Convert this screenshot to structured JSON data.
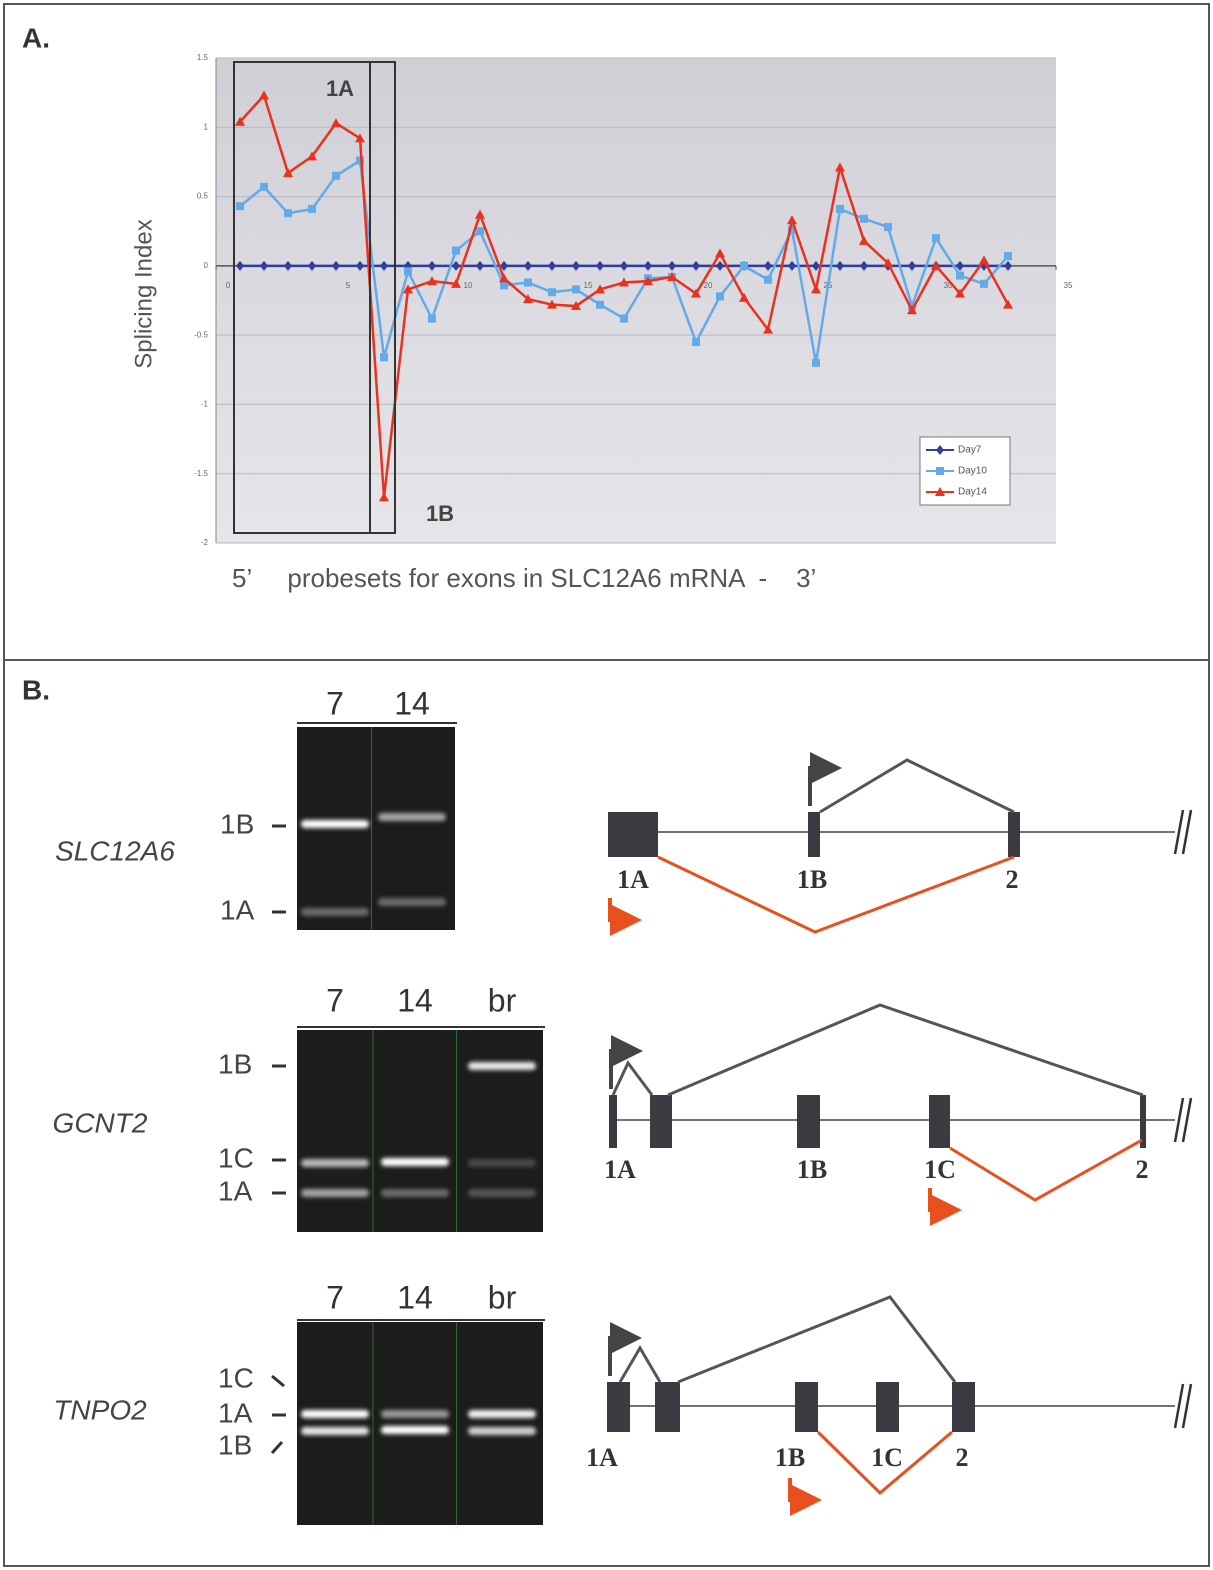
{
  "panel_a_label": "A.",
  "chart_data": {
    "type": "line",
    "ylabel": "Splicing Index",
    "xlabel": "5’     probesets for exons in SLC12A6 mRNA  -    3’",
    "annotations": [
      "1A",
      "1B"
    ],
    "x": [
      1,
      2,
      3,
      4,
      5,
      6,
      7,
      8,
      9,
      10,
      11,
      12,
      13,
      14,
      15,
      16,
      17,
      18,
      19,
      20,
      21,
      22,
      23,
      24,
      25,
      26,
      27,
      28,
      29,
      30,
      31,
      32,
      33
    ],
    "series": [
      {
        "name": "Day7",
        "color": "#2e3f9e",
        "marker": "diamond",
        "values": [
          0,
          0,
          0,
          0,
          0,
          0,
          0,
          0,
          0,
          0,
          0,
          0,
          0,
          0,
          0,
          0,
          0,
          0,
          0,
          0,
          0,
          0,
          0,
          0,
          0,
          0,
          0,
          0,
          0,
          0,
          0,
          0,
          0
        ]
      },
      {
        "name": "Day10",
        "color": "#62aaea",
        "marker": "square",
        "values": [
          0.43,
          0.57,
          0.38,
          0.41,
          0.65,
          0.76,
          -0.66,
          -0.04,
          -0.38,
          0.11,
          0.25,
          -0.14,
          -0.12,
          -0.19,
          -0.17,
          -0.28,
          -0.38,
          -0.09,
          -0.08,
          -0.55,
          -0.22,
          0,
          -0.1,
          0.26,
          -0.7,
          0.41,
          0.34,
          0.28,
          -0.29,
          0.2,
          -0.07,
          -0.13,
          0.07
        ]
      },
      {
        "name": "Day14",
        "color": "#e8321e",
        "marker": "triangle",
        "values": [
          1.04,
          1.23,
          0.67,
          0.79,
          1.03,
          0.92,
          -1.67,
          -0.17,
          -0.11,
          -0.13,
          0.37,
          -0.09,
          -0.24,
          -0.28,
          -0.29,
          -0.17,
          -0.12,
          -0.11,
          -0.08,
          -0.2,
          0.09,
          -0.23,
          -0.46,
          0.33,
          -0.17,
          0.71,
          0.18,
          0.02,
          -0.32,
          0,
          -0.2,
          0.04,
          -0.28
        ]
      }
    ],
    "xlim": [
      0,
      35
    ],
    "xticks": [
      0,
      5,
      10,
      15,
      20,
      25,
      30,
      35
    ],
    "ylim": [
      -2,
      1.5
    ],
    "yticks": [
      -2,
      -1.5,
      -1,
      -0.5,
      0,
      0.5,
      1,
      1.5
    ],
    "grid": true,
    "legend": "lower right"
  },
  "panel_b": {
    "label": "B.",
    "blots": [
      {
        "gene": "SLC12A6",
        "lanes": [
          "7",
          "14"
        ],
        "bands": [
          "1B",
          "1A"
        ],
        "exons": [
          "1A",
          "1B",
          "2"
        ]
      },
      {
        "gene": "GCNT2",
        "lanes": [
          "7",
          "14",
          "br"
        ],
        "bands": [
          "1B",
          "1C",
          "1A"
        ],
        "exons": [
          "1A",
          "1B",
          "1C",
          "2"
        ]
      },
      {
        "gene": "TNPO2",
        "lanes": [
          "7",
          "14",
          "br"
        ],
        "bands": [
          "1C",
          "1A",
          "1B"
        ],
        "exons": [
          "1A",
          "1B",
          "1C",
          "2"
        ]
      }
    ]
  }
}
